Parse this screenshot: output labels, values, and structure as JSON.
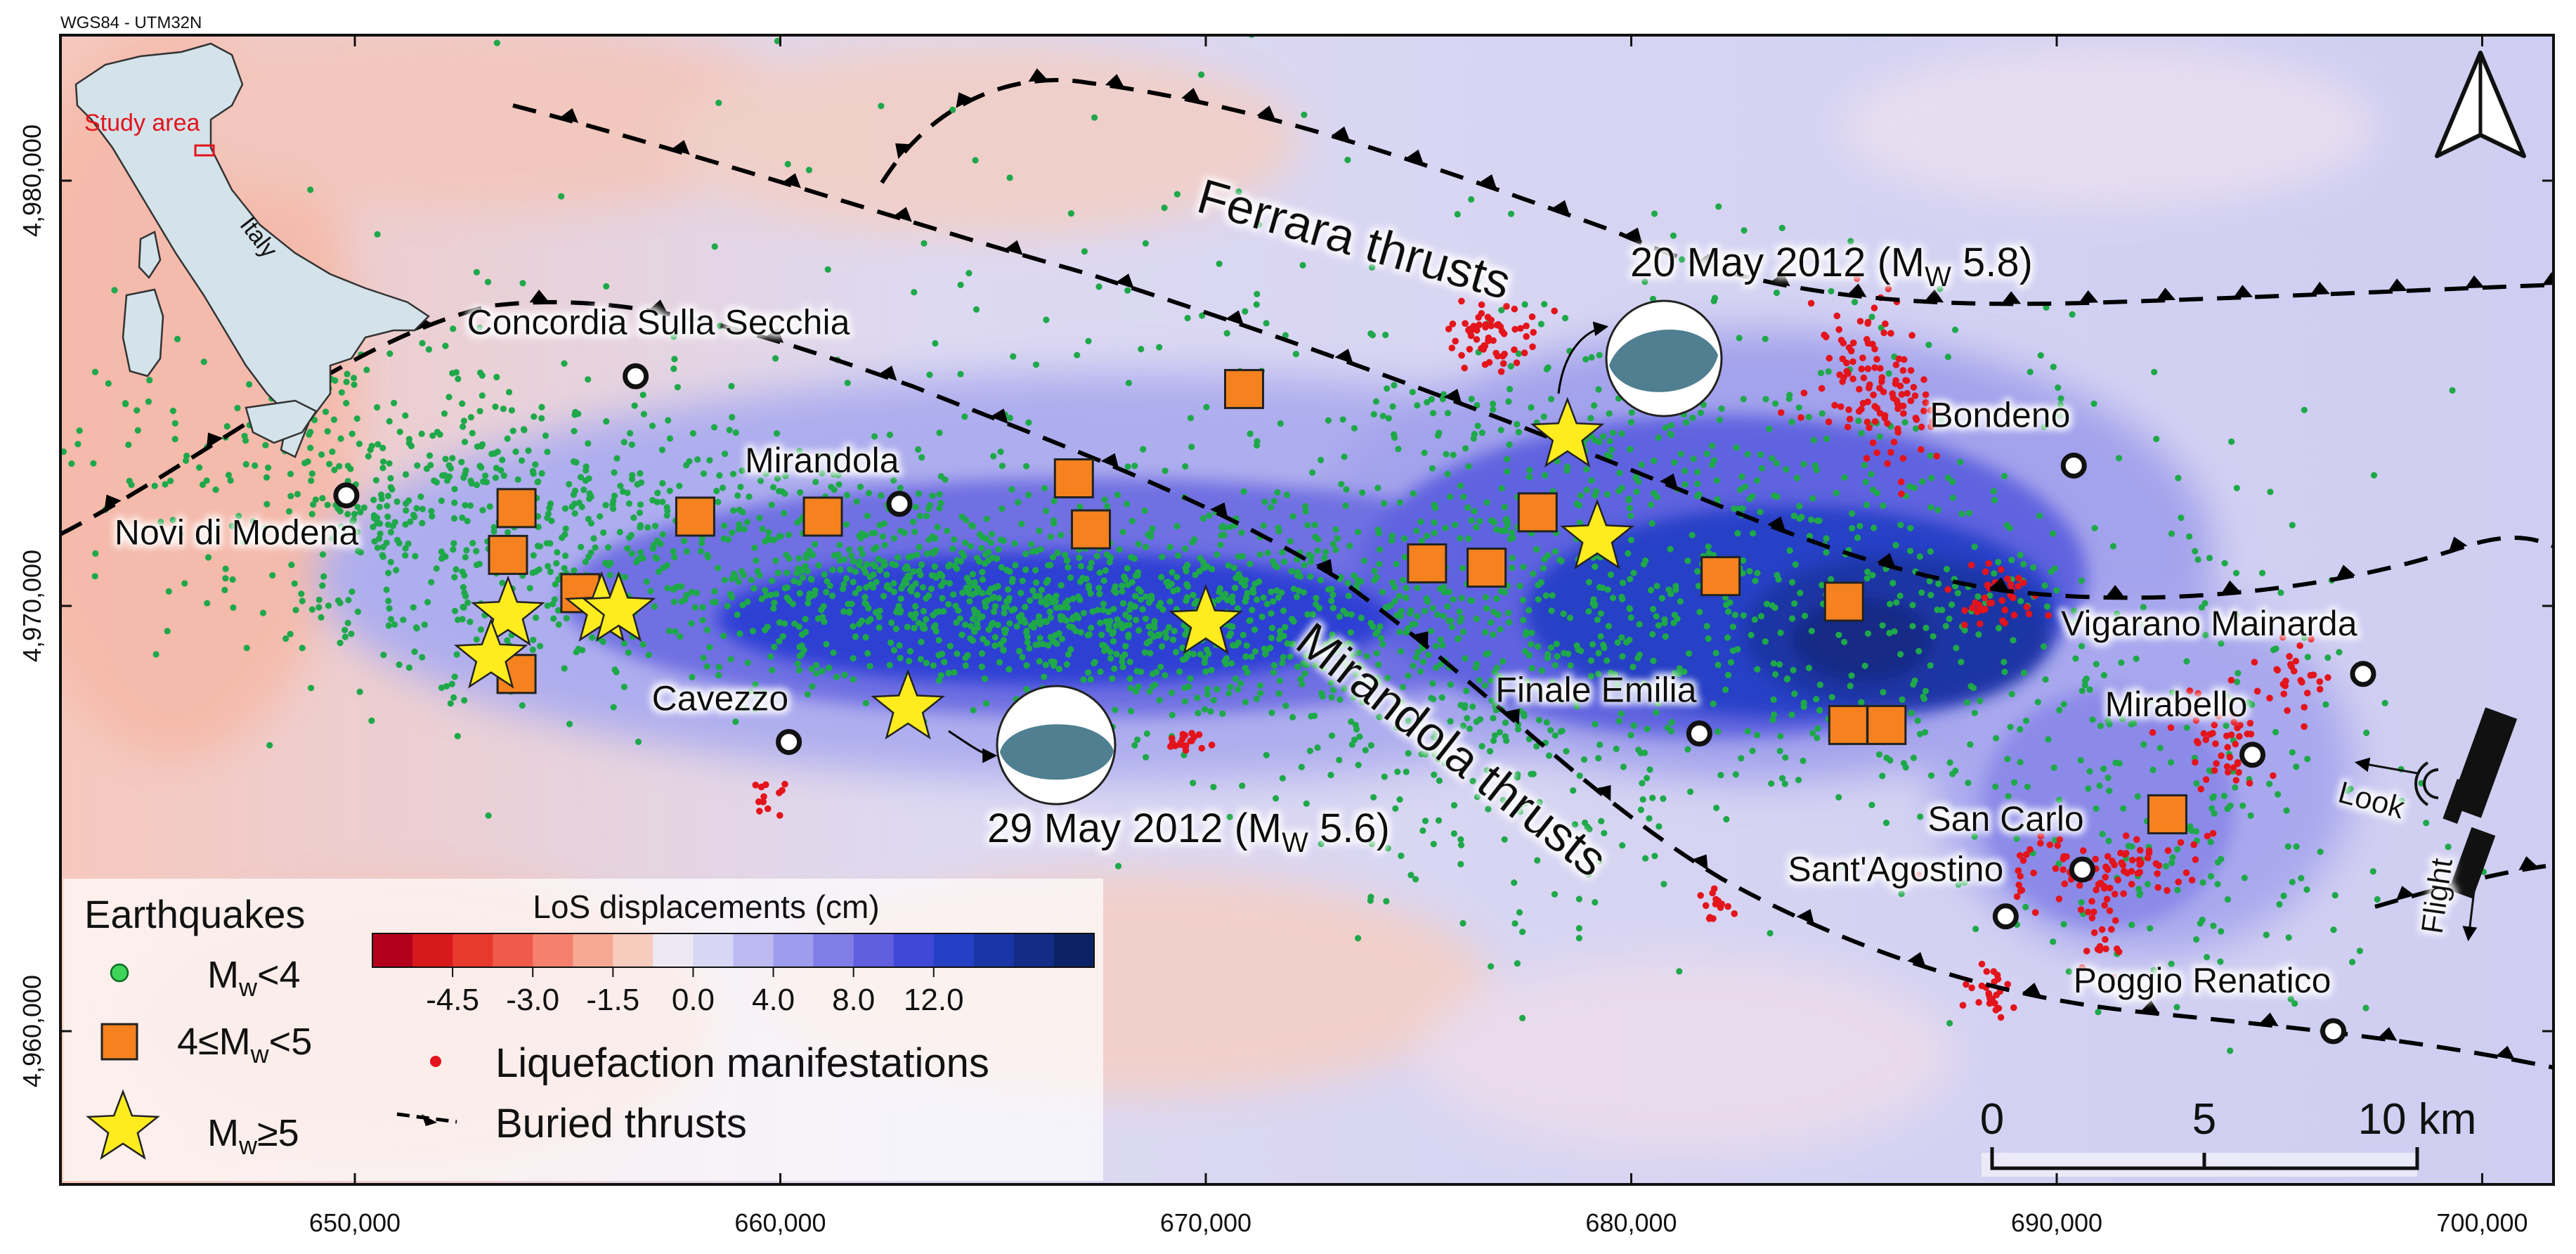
{
  "crs_label": "WGS84 - UTM32N",
  "x_ticks": [
    {
      "value": 650000,
      "label": "650,000"
    },
    {
      "value": 660000,
      "label": "660,000"
    },
    {
      "value": 670000,
      "label": "670,000"
    },
    {
      "value": 680000,
      "label": "680,000"
    },
    {
      "value": 690000,
      "label": "690,000"
    },
    {
      "value": 700000,
      "label": "700,000"
    }
  ],
  "y_ticks": [
    {
      "value": 4980000,
      "label": "4,980,000"
    },
    {
      "value": 4970000,
      "label": "4,970,000"
    },
    {
      "value": 4960000,
      "label": "4,960,000"
    }
  ],
  "inset": {
    "study_area_label": "Study area",
    "country_label": "Italy"
  },
  "thrust_labels": {
    "ferrara": "Ferrara thrusts",
    "mirandola": "Mirandola thrusts"
  },
  "mainshocks": {
    "may20": {
      "label_pre": "20 May 2012 (M",
      "label_sub": "W",
      "label_post": " 5.8)"
    },
    "may29": {
      "label_pre": "29 May 2012 (M",
      "label_sub": "W",
      "label_post": " 5.6)"
    }
  },
  "towns": [
    {
      "name": "Concordia Sulla Secchia",
      "x": 656600,
      "y": 4975400
    },
    {
      "name": "Novi di Modena",
      "x": 649800,
      "y": 4972600
    },
    {
      "name": "Mirandola",
      "x": 662800,
      "y": 4972400
    },
    {
      "name": "Cavezzo",
      "x": 660200,
      "y": 4966800
    },
    {
      "name": "Finale Emilia",
      "x": 681600,
      "y": 4967000
    },
    {
      "name": "Bondeno",
      "x": 690400,
      "y": 4973300
    },
    {
      "name": "Vigarano Mainarda",
      "x": 697200,
      "y": 4968400
    },
    {
      "name": "Mirabello",
      "x": 694600,
      "y": 4966500
    },
    {
      "name": "San Carlo",
      "x": 690600,
      "y": 4963800
    },
    {
      "name": "Sant'Agostino",
      "x": 688800,
      "y": 4962700
    },
    {
      "name": "Poggio Renatico",
      "x": 696500,
      "y": 4960000
    }
  ],
  "stars": [
    {
      "x": 678500,
      "y": 4974000
    },
    {
      "x": 679200,
      "y": 4971600
    },
    {
      "x": 670000,
      "y": 4969600
    },
    {
      "x": 663000,
      "y": 4967600
    },
    {
      "x": 653600,
      "y": 4969800
    },
    {
      "x": 655800,
      "y": 4969900
    },
    {
      "x": 656200,
      "y": 4969900
    },
    {
      "x": 653200,
      "y": 4968800
    }
  ],
  "squares": [
    {
      "x": 653800,
      "y": 4972300
    },
    {
      "x": 653600,
      "y": 4971200
    },
    {
      "x": 655300,
      "y": 4970300
    },
    {
      "x": 653800,
      "y": 4968400
    },
    {
      "x": 658000,
      "y": 4972100
    },
    {
      "x": 661000,
      "y": 4972100
    },
    {
      "x": 666900,
      "y": 4973000
    },
    {
      "x": 667300,
      "y": 4971800
    },
    {
      "x": 670900,
      "y": 4975100
    },
    {
      "x": 675200,
      "y": 4971000
    },
    {
      "x": 676600,
      "y": 4970900
    },
    {
      "x": 677800,
      "y": 4972200
    },
    {
      "x": 682100,
      "y": 4970700
    },
    {
      "x": 685000,
      "y": 4970100
    },
    {
      "x": 685100,
      "y": 4967200
    },
    {
      "x": 686000,
      "y": 4967200
    },
    {
      "x": 692600,
      "y": 4965100
    }
  ],
  "legend": {
    "title": "Earthquakes",
    "small": {
      "pre": "M",
      "sub": "w",
      "post": "<4"
    },
    "medium": {
      "pre": "4≤M",
      "sub": "w",
      "post": "<5"
    },
    "large": {
      "pre": "M",
      "sub": "w",
      "post": "≥5"
    },
    "los_title": "LoS displacements (cm)",
    "los_ticks": [
      "-4.5",
      "-3.0",
      "-1.5",
      "0.0",
      "4.0",
      "8.0",
      "12.0"
    ],
    "los_colors": [
      "#b2001b",
      "#d7191c",
      "#e8392f",
      "#f05a4a",
      "#f4806d",
      "#f6a893",
      "#f7cbbd",
      "#ece9f4",
      "#d7d6f4",
      "#bcbaf1",
      "#9e9cec",
      "#7f7ee6",
      "#5f5fe0",
      "#3f48d7",
      "#2440c4",
      "#1a36a6",
      "#132d87",
      "#0b2366"
    ],
    "liquefaction": "Liquefaction manifestations",
    "thrusts": "Buried thrusts"
  },
  "scale_bar": {
    "labels": [
      "0",
      "5",
      "10 km"
    ]
  },
  "satellite": {
    "look": "Look",
    "flight": "Flight"
  },
  "colors": {
    "small_eq": "#2aa84a",
    "medium_eq": "#f5821f",
    "large_eq": "#ffec1f",
    "liquefaction": "#e3141b"
  }
}
